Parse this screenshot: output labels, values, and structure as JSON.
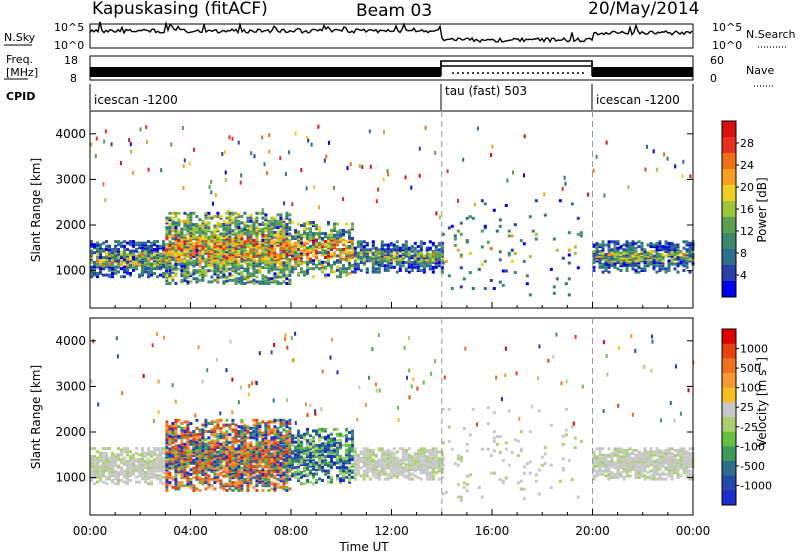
{
  "header": {
    "station": "Kapuskasing (fitACF)",
    "beam": "Beam 03",
    "date": "20/May/2014"
  },
  "strips": {
    "nsky_label": "N.Sky",
    "nsky_ticks": [
      "10^5",
      "10^0"
    ],
    "nsearch_label": "N.Search",
    "freq_label_1": "Freq.",
    "freq_label_2": "[MHz]",
    "freq_ticks": [
      "18",
      "8"
    ],
    "nave_ticks": [
      "60",
      "0"
    ],
    "nave_label": "Nave",
    "cpid_label": "CPID",
    "cpid_segments": [
      {
        "label": "icescan -1200",
        "start": 0,
        "end": 14
      },
      {
        "label": "tau (fast) 503",
        "start": 14,
        "end": 20
      },
      {
        "label": "icescan -1200",
        "start": 20,
        "end": 24
      }
    ]
  },
  "colorbars": {
    "power": {
      "label": "Power [dB]",
      "ticks": [
        "28",
        "24",
        "20",
        "16",
        "12",
        "8",
        "4"
      ],
      "colors": [
        "#0000ee",
        "#2a3fa8",
        "#2e6e8e",
        "#3a8a6a",
        "#5aa050",
        "#9cc63a",
        "#f0d020",
        "#f8a020",
        "#f07018",
        "#e83020",
        "#d81010"
      ]
    },
    "velocity": {
      "label": "Velocity [m s",
      "label_sup": "-1",
      "label_end": "]",
      "ticks": [
        "1000",
        "500",
        "100",
        "25",
        "-25",
        "-100",
        "-500",
        "-1000"
      ],
      "colors": [
        "#1a2ccc",
        "#204aa8",
        "#2e6e8c",
        "#3c9a5a",
        "#66c040",
        "#aad070",
        "#c8c8c8",
        "#f8c020",
        "#f89830",
        "#f07020",
        "#e84010",
        "#dc0000"
      ]
    }
  },
  "chart_data": {
    "type": "heatmap",
    "panels": [
      {
        "name": "power",
        "ylabel": "Slant Range [km]",
        "yticks": [
          1000,
          2000,
          3000,
          4000
        ]
      },
      {
        "name": "velocity",
        "ylabel": "Slant Range [km]",
        "yticks": [
          1000,
          2000,
          3000,
          4000
        ]
      }
    ],
    "xlabel": "Time UT",
    "xticks": [
      "00:00",
      "04:00",
      "08:00",
      "12:00",
      "16:00",
      "20:00",
      "00:00"
    ],
    "xlim_hours": [
      0,
      24
    ],
    "ylim_km": [
      180,
      4500
    ],
    "mode_boundaries_hours": [
      14,
      20
    ],
    "scatter_bands": [
      {
        "start": 0,
        "end": 3.0,
        "range": [
          900,
          1700
        ],
        "density": 0.85
      },
      {
        "start": 3.0,
        "end": 8.0,
        "range": [
          750,
          2300
        ],
        "density": 0.9
      },
      {
        "start": 8.0,
        "end": 10.5,
        "range": [
          900,
          2100
        ],
        "density": 0.75
      },
      {
        "start": 10.5,
        "end": 14.0,
        "range": [
          1000,
          1700
        ],
        "density": 0.85
      },
      {
        "start": 14.0,
        "end": 19.5,
        "range": [
          500,
          2600
        ],
        "density": 0.05
      },
      {
        "start": 20.0,
        "end": 24.0,
        "range": [
          1000,
          1700
        ],
        "density": 0.85
      }
    ]
  }
}
